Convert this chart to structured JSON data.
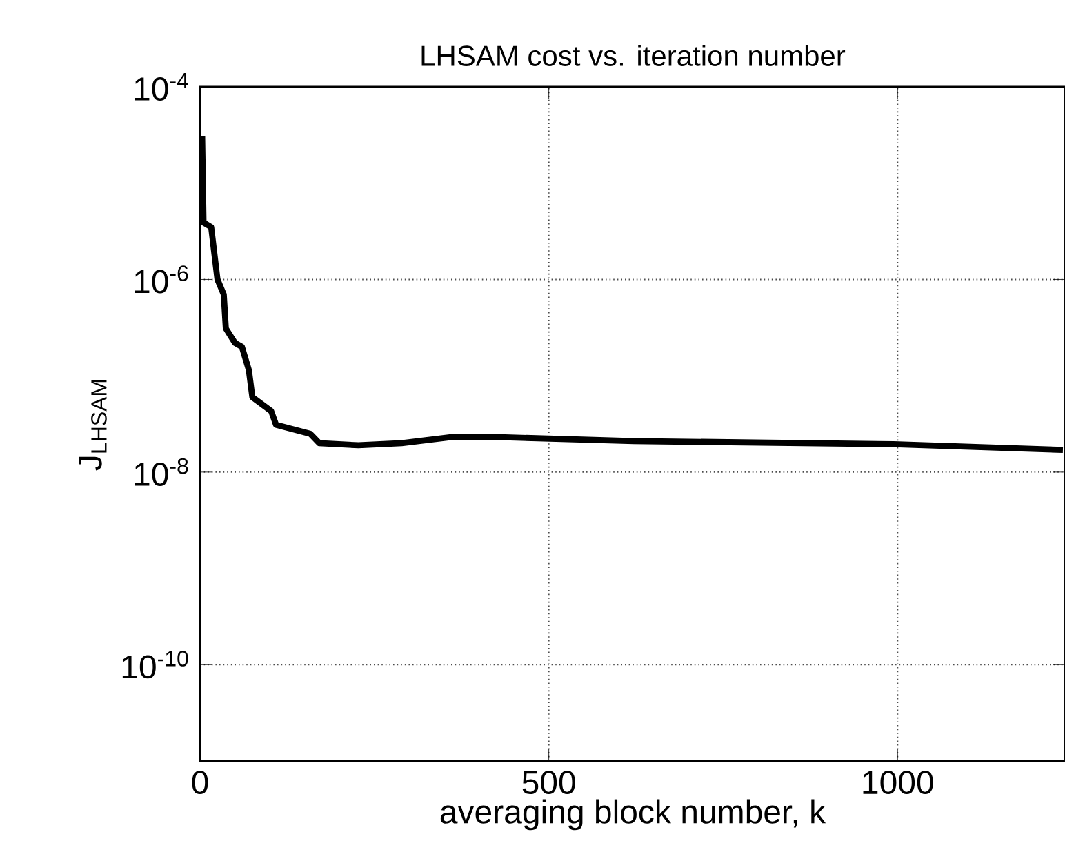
{
  "chart_data": {
    "type": "line",
    "title": "LHSAM cost vs. iteration number",
    "xlabel": "averaging block number, k",
    "ylabel": "J$_{LHSAM}$",
    "x": [
      3,
      5,
      16,
      25,
      34,
      37,
      50,
      60,
      70,
      75,
      102,
      109,
      158,
      171,
      227,
      289,
      358,
      437,
      622,
      994,
      1237
    ],
    "series": [
      {
        "color": "#000000",
        "values": [
          3.1e-05,
          3.9e-06,
          3.5e-06,
          1e-06,
          7e-07,
          3.1e-07,
          2.2e-07,
          2e-07,
          1.15e-07,
          6e-08,
          4.3e-08,
          3.1e-08,
          2.5e-08,
          2e-08,
          1.9e-08,
          2e-08,
          2.3e-08,
          2.3e-08,
          2.1e-08,
          1.95e-08,
          1.7e-08
        ]
      }
    ],
    "xlim": [
      0,
      1240
    ],
    "xticks": [
      0,
      500,
      1000
    ],
    "ylim": [
      1e-11,
      0.0001
    ],
    "yticks": [
      {
        "value": 1e-10,
        "label": "10$^{-10}$"
      },
      {
        "value": 1e-08,
        "label": "10$^{-8}$"
      },
      {
        "value": 1e-06,
        "label": "10$^{-6}$"
      },
      {
        "value": 0.0001,
        "label": "10$^{-4}$"
      }
    ],
    "log": "y",
    "grid": true,
    "line_style": "solid",
    "marker": "none"
  }
}
